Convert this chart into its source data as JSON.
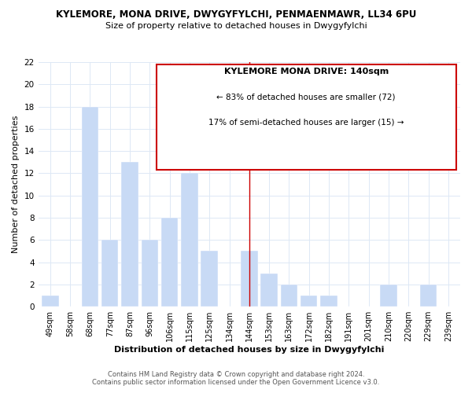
{
  "title": "KYLEMORE, MONA DRIVE, DWYGYFYLCHI, PENMAENMAWR, LL34 6PU",
  "subtitle": "Size of property relative to detached houses in Dwygyfylchi",
  "xlabel": "Distribution of detached houses by size in Dwygyfylchi",
  "ylabel": "Number of detached properties",
  "bar_labels": [
    "49sqm",
    "58sqm",
    "68sqm",
    "77sqm",
    "87sqm",
    "96sqm",
    "106sqm",
    "115sqm",
    "125sqm",
    "134sqm",
    "144sqm",
    "153sqm",
    "163sqm",
    "172sqm",
    "182sqm",
    "191sqm",
    "201sqm",
    "210sqm",
    "220sqm",
    "229sqm",
    "239sqm"
  ],
  "bar_values": [
    1,
    0,
    18,
    6,
    13,
    6,
    8,
    12,
    5,
    0,
    5,
    3,
    2,
    1,
    1,
    0,
    0,
    2,
    0,
    2,
    0
  ],
  "bar_color": "#c8daf5",
  "ylim": [
    0,
    22
  ],
  "yticks": [
    0,
    2,
    4,
    6,
    8,
    10,
    12,
    14,
    16,
    18,
    20,
    22
  ],
  "annotation_title": "KYLEMORE MONA DRIVE: 140sqm",
  "annotation_line1": "← 83% of detached houses are smaller (72)",
  "annotation_line2": "17% of semi-detached houses are larger (15) →",
  "footer1": "Contains HM Land Registry data © Crown copyright and database right 2024.",
  "footer2": "Contains public sector information licensed under the Open Government Licence v3.0.",
  "grid_color": "#dde8f5",
  "vline_x_index": 10
}
